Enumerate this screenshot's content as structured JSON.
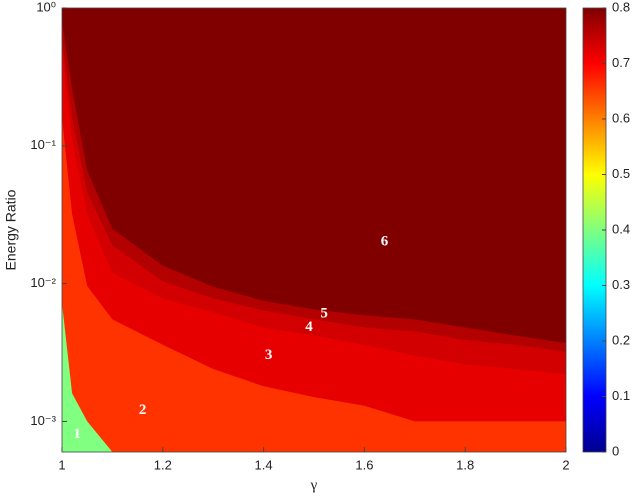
{
  "chart_data": {
    "type": "region",
    "x_label": "γ",
    "y_label": "Energy Ratio",
    "x": [
      1,
      1.02,
      1.05,
      1.1,
      1.2,
      1.3,
      1.4,
      1.5,
      1.6,
      1.7,
      1.8,
      1.9,
      2
    ],
    "series": [
      {
        "name": "1",
        "level": 0.4,
        "values": [
          0.0072,
          0.0016,
          0.001,
          0.0006,
          0.0006,
          0.0006,
          0.0006,
          0.0006,
          0.0006,
          0.0006,
          0.0006,
          0.0006,
          0.0006
        ]
      },
      {
        "name": "2",
        "level": 0.66,
        "values": [
          0.16,
          0.032,
          0.0096,
          0.0055,
          0.0036,
          0.0024,
          0.0018,
          0.0015,
          0.0013,
          0.001,
          0.001,
          0.001,
          0.001
        ]
      },
      {
        "name": "3",
        "level": 0.72,
        "values": [
          0.5,
          0.11,
          0.032,
          0.012,
          0.0078,
          0.0062,
          0.0048,
          0.0042,
          0.0036,
          0.003,
          0.0026,
          0.0024,
          0.0022
        ]
      },
      {
        "name": "4",
        "level": 0.735,
        "values": [
          0.6,
          0.16,
          0.046,
          0.019,
          0.0104,
          0.0078,
          0.0064,
          0.0055,
          0.0048,
          0.0045,
          0.0039,
          0.0036,
          0.0032
        ]
      },
      {
        "name": "5",
        "level": 0.76,
        "values": [
          0.8,
          0.26,
          0.066,
          0.025,
          0.0135,
          0.0095,
          0.0075,
          0.0065,
          0.0059,
          0.0055,
          0.0048,
          0.0042,
          0.0037
        ]
      },
      {
        "name": "6",
        "level": 0.8
      }
    ],
    "xlim": [
      1,
      2
    ],
    "xticks": [
      1,
      1.2,
      1.4,
      1.6,
      1.8,
      2
    ],
    "ylim": [
      0.0006,
      1
    ],
    "y_log": true,
    "yticks": [
      {
        "value": 0.001,
        "label": "10⁻³"
      },
      {
        "value": 0.01,
        "label": "10⁻²"
      },
      {
        "value": 0.1,
        "label": "10⁻¹"
      },
      {
        "value": 1,
        "label": "10⁰"
      }
    ],
    "colormap": "jet",
    "clim": [
      0,
      0.8
    ],
    "cticks": [
      0,
      0.1,
      0.2,
      0.3,
      0.4,
      0.5,
      0.6,
      0.7,
      0.8
    ]
  }
}
